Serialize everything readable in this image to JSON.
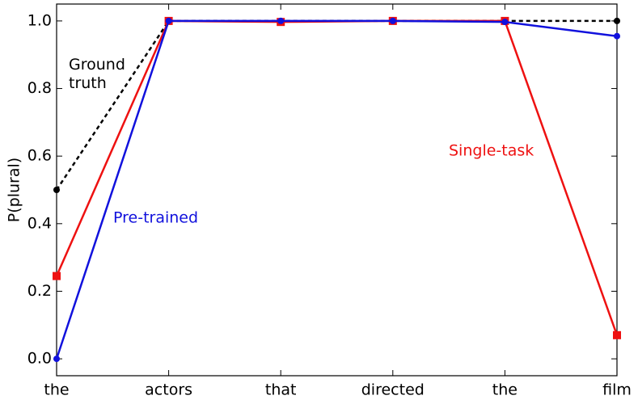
{
  "chart_data": {
    "type": "line",
    "y_label": "P(plural)",
    "categories": [
      "the",
      "actors",
      "that",
      "directed",
      "the",
      "film"
    ],
    "series": [
      {
        "name": "Ground truth",
        "color": "#000000",
        "dash": true,
        "marker": "circle",
        "values": [
          0.5,
          1.0,
          1.0,
          1.0,
          1.0,
          1.0
        ]
      },
      {
        "name": "Single-task",
        "color": "#ee1111",
        "dash": false,
        "marker": "square",
        "values": [
          0.245,
          1.0,
          0.997,
          1.0,
          1.0,
          0.07
        ]
      },
      {
        "name": "Pre-trained",
        "color": "#1111dd",
        "dash": false,
        "marker": "circle",
        "values": [
          0.0,
          1.0,
          1.0,
          1.0,
          0.997,
          0.955
        ]
      }
    ],
    "ylim": [
      -0.05,
      1.05
    ],
    "yticks": [
      {
        "value": 0,
        "label": "0.0"
      },
      {
        "value": 0.2,
        "label": "0.2"
      },
      {
        "value": 0.4,
        "label": "0.4"
      },
      {
        "value": 0.6,
        "label": "0.6"
      },
      {
        "value": 0.8,
        "label": "0.8"
      },
      {
        "value": 1,
        "label": "1.0"
      }
    ],
    "grid": false
  }
}
